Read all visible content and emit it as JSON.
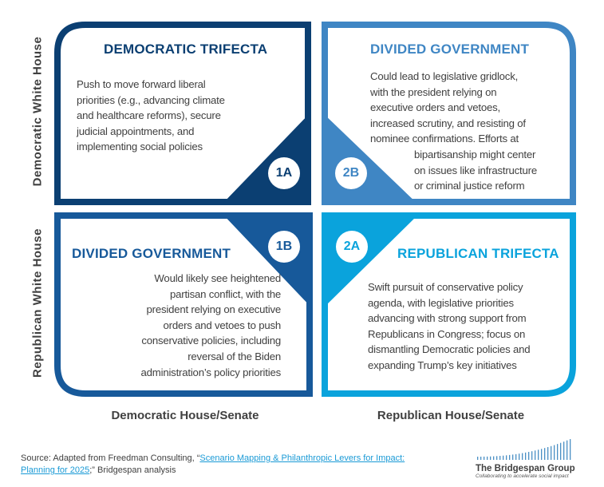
{
  "colors": {
    "q1": "#0b3f72",
    "q2": "#3f86c4",
    "q3": "#17599a",
    "q4": "#0aa3dc",
    "text": "#404040",
    "link": "#1a9ad6"
  },
  "axes": {
    "y_top": "Democratic White House",
    "y_bottom": "Republican White House",
    "x_left": "Democratic House/Senate",
    "x_right": "Republican House/Senate"
  },
  "quadrants": [
    {
      "id": "1A",
      "title": "DEMOCRATIC TRIFECTA",
      "lines": [
        "Push to move forward liberal",
        "priorities (e.g., advancing climate",
        "and healthcare reforms), secure",
        "judicial appointments, and",
        "implementing social policies"
      ]
    },
    {
      "id": "2B",
      "title": "DIVIDED GOVERNMENT",
      "lines": [
        "Could lead to legislative gridlock,",
        "with the president relying on",
        "executive orders and vetoes,",
        "increased scrutiny, and resisting of",
        "nominee confirmations. Efforts at",
        "bipartisanship might center",
        "on issues like infrastructure",
        "or criminal justice reform"
      ]
    },
    {
      "id": "1B",
      "title": "DIVIDED GOVERNMENT",
      "lines": [
        "Would likely see heightened",
        "partisan conflict, with the",
        "president relying on executive",
        "orders and vetoes to push",
        "conservative policies, including",
        "reversal of the Biden",
        "administration’s policy priorities"
      ]
    },
    {
      "id": "2A",
      "title": "REPUBLICAN TRIFECTA",
      "lines": [
        "Swift pursuit of conservative policy",
        "agenda, with legislative priorities",
        "advancing with strong support from",
        "Republicans in Congress; focus on",
        "dismantling Democratic policies and",
        "expanding Trump’s key initiatives"
      ]
    }
  ],
  "source": {
    "prefix": "Source: Adapted from Freedman Consulting, “",
    "link_line1": "Scenario Mapping & Philanthropic Levers for Impact:",
    "link_line2": "Planning for 2025",
    "suffix": ";” Bridgespan analysis"
  },
  "logo": {
    "name": "The Bridgespan Group",
    "tagline": "Collaborating to accelerate social impact"
  }
}
